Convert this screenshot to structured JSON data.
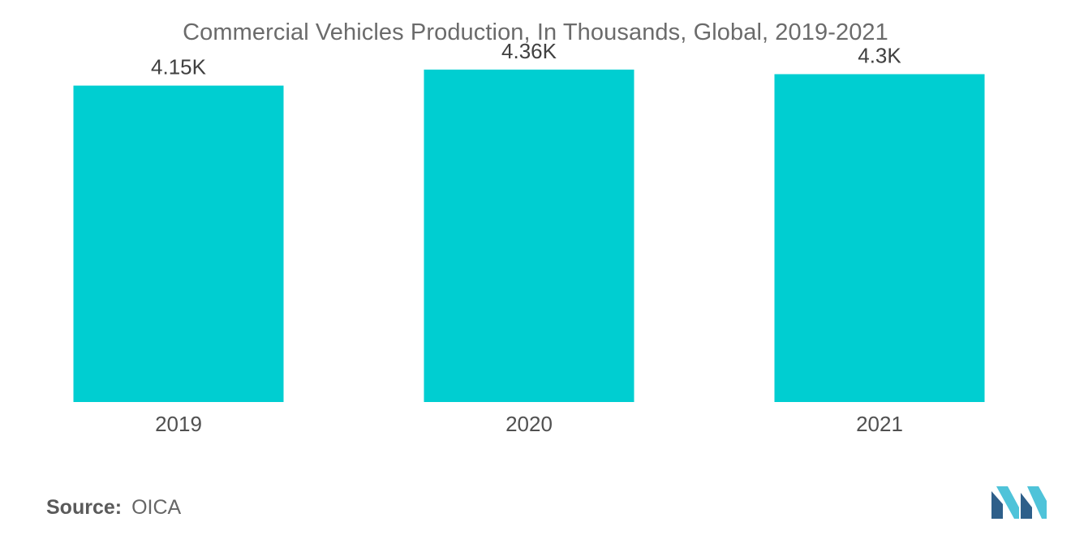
{
  "chart_data": {
    "type": "bar",
    "title": "Commercial Vehicles Production, In Thousands, Global, 2019-2021",
    "categories": [
      "2019",
      "2020",
      "2021"
    ],
    "values": [
      4.15,
      4.36,
      4.3
    ],
    "data_labels": [
      "4.15K",
      "4.36K",
      "4.3K"
    ],
    "xlabel": "",
    "ylabel": "",
    "ylim": [
      0,
      5.06
    ],
    "grid": false,
    "legend": "none",
    "bar_color": "#00CED1"
  },
  "source": {
    "label": "Source:",
    "value": "OICA"
  },
  "logo": {
    "icon": "mordor-intelligence-logo-icon",
    "colors": [
      "#2E5F8A",
      "#4FC3D9"
    ]
  }
}
